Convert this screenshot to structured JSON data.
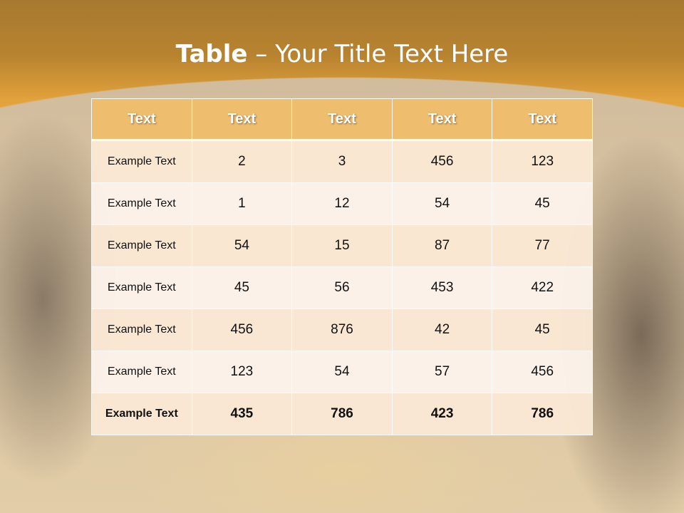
{
  "slide": {
    "title_bold": "Table",
    "title_rest": " – Your Title Text Here"
  },
  "table": {
    "headers": [
      "Text",
      "Text",
      "Text",
      "Text",
      "Text"
    ],
    "rows": [
      [
        "Example Text",
        "2",
        "3",
        "456",
        "123"
      ],
      [
        "Example Text",
        "1",
        "12",
        "54",
        "45"
      ],
      [
        "Example Text",
        "54",
        "15",
        "87",
        "77"
      ],
      [
        "Example Text",
        "45",
        "56",
        "453",
        "422"
      ],
      [
        "Example Text",
        "456",
        "876",
        "42",
        "45"
      ],
      [
        "Example Text",
        "123",
        "54",
        "57",
        "456"
      ],
      [
        "Example Text",
        "435",
        "786",
        "423",
        "786"
      ]
    ]
  },
  "colors": {
    "header": "#eebd6e",
    "banner": "#a67a30",
    "row_odd": "#fae8d4",
    "row_even": "#fcf2eb"
  }
}
